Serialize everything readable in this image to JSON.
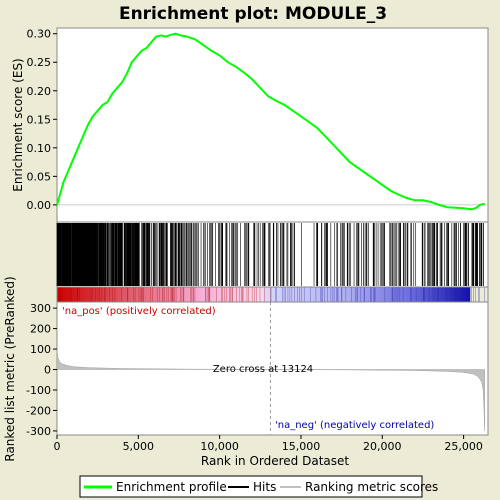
{
  "chart_data": [
    {
      "type": "line",
      "title": "Enrichment plot: MODULE_3",
      "ylabel": "Enrichment score (ES)",
      "xlim": [
        0,
        26500
      ],
      "ylim": [
        -0.03,
        0.31
      ],
      "y_ticks": [
        "0.30",
        "0.25",
        "0.20",
        "0.15",
        "0.10",
        "0.05",
        "0.00"
      ],
      "y_tick_values": [
        0.3,
        0.25,
        0.2,
        0.15,
        0.1,
        0.05,
        0.0
      ],
      "series": [
        {
          "name": "Enrichment profile",
          "color": "#00ff00",
          "x": [
            0,
            200,
            400,
            700,
            1000,
            1300,
            1600,
            1900,
            2200,
            2500,
            2800,
            3100,
            3400,
            3700,
            4000,
            4300,
            4600,
            4900,
            5200,
            5500,
            5800,
            6100,
            6400,
            6700,
            7000,
            7300,
            7600,
            8000,
            8500,
            9000,
            9500,
            10000,
            10500,
            11000,
            11500,
            12000,
            12500,
            13000,
            13500,
            14000,
            14500,
            15000,
            15500,
            16000,
            16500,
            17000,
            17500,
            18000,
            18500,
            19000,
            19500,
            20000,
            20500,
            21000,
            21500,
            22000,
            22500,
            23000,
            23500,
            24000,
            24500,
            25000,
            25500,
            25800,
            26000,
            26300
          ],
          "y": [
            0.0,
            0.02,
            0.04,
            0.06,
            0.08,
            0.1,
            0.12,
            0.14,
            0.155,
            0.165,
            0.175,
            0.18,
            0.195,
            0.205,
            0.215,
            0.23,
            0.25,
            0.26,
            0.27,
            0.275,
            0.285,
            0.295,
            0.297,
            0.295,
            0.298,
            0.3,
            0.297,
            0.295,
            0.29,
            0.28,
            0.27,
            0.262,
            0.25,
            0.242,
            0.232,
            0.22,
            0.205,
            0.19,
            0.182,
            0.175,
            0.165,
            0.155,
            0.145,
            0.135,
            0.12,
            0.105,
            0.09,
            0.075,
            0.065,
            0.055,
            0.045,
            0.035,
            0.025,
            0.018,
            0.012,
            0.008,
            0.008,
            0.005,
            0.0,
            -0.004,
            -0.005,
            -0.006,
            -0.008,
            -0.005,
            0.0,
            0.002
          ]
        }
      ]
    },
    {
      "type": "bar",
      "ylabel": "Ranked list metric (PreRanked)",
      "xlabel": "Rank in Ordered Dataset",
      "xlim": [
        0,
        26500
      ],
      "ylim": [
        -320,
        330
      ],
      "x_ticks": [
        "0",
        "5,000",
        "10,000",
        "15,000",
        "20,000",
        "25,000"
      ],
      "x_tick_values": [
        0,
        5000,
        10000,
        15000,
        20000,
        25000
      ],
      "y_ticks": [
        "300",
        "200",
        "100",
        "0",
        "-100",
        "-200",
        "-300"
      ],
      "y_tick_values": [
        300,
        200,
        100,
        0,
        -100,
        -200,
        -300
      ],
      "metric_x": [
        0,
        50,
        150,
        300,
        600,
        1000,
        2000,
        4000,
        8000,
        13124,
        18000,
        22000,
        24000,
        25000,
        25600,
        25900,
        26100,
        26200,
        26250,
        26300
      ],
      "metric_y": [
        105,
        60,
        40,
        28,
        20,
        14,
        9,
        5,
        2,
        0,
        -2,
        -5,
        -9,
        -14,
        -22,
        -35,
        -60,
        -100,
        -180,
        -300
      ],
      "zero_cross_text": "Zero cross at 13124",
      "zero_cross": 13124,
      "pos_label": "'na_pos' (positively correlated)",
      "neg_label": "'na_neg' (negatively correlated)"
    }
  ],
  "hits_note": "",
  "legend": {
    "items": [
      {
        "label": "Enrichment profile",
        "color": "#00ff00"
      },
      {
        "label": "Hits",
        "color": "#000000"
      },
      {
        "label": "Ranking metric scores",
        "color": "#c0c0c0"
      }
    ]
  },
  "colors": {
    "pos_label": "#cc0000",
    "neg_label": "#0000aa",
    "background": "#ecebd6",
    "plot_bg": "#ffffff"
  }
}
